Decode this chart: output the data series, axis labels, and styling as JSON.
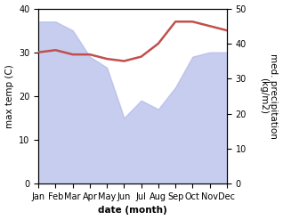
{
  "months": [
    "Jan",
    "Feb",
    "Mar",
    "Apr",
    "May",
    "Jun",
    "Jul",
    "Aug",
    "Sep",
    "Oct",
    "Nov",
    "Dec"
  ],
  "x": [
    0,
    1,
    2,
    3,
    4,
    5,
    6,
    7,
    8,
    9,
    10,
    11
  ],
  "precipitation": [
    37,
    37,
    35,
    29,
    26.5,
    15,
    19,
    17,
    22,
    29,
    30,
    30
  ],
  "temperature": [
    30,
    30.5,
    29.5,
    29.5,
    28.5,
    28,
    29,
    32,
    37,
    37,
    36,
    35
  ],
  "precip_color": "#b0b8e8",
  "temp_color": "#c0504d",
  "left_ylim": [
    0,
    40
  ],
  "right_ylim": [
    0,
    50
  ],
  "left_yticks": [
    0,
    10,
    20,
    30,
    40
  ],
  "right_yticks": [
    0,
    10,
    20,
    30,
    40,
    50
  ],
  "xlabel": "date (month)",
  "ylabel_left": "max temp (C)",
  "ylabel_right": "med. precipitation\n(kg/m2)",
  "bg_color": "#ffffff",
  "label_fontsize": 7.5,
  "tick_fontsize": 7,
  "line_width": 1.8
}
